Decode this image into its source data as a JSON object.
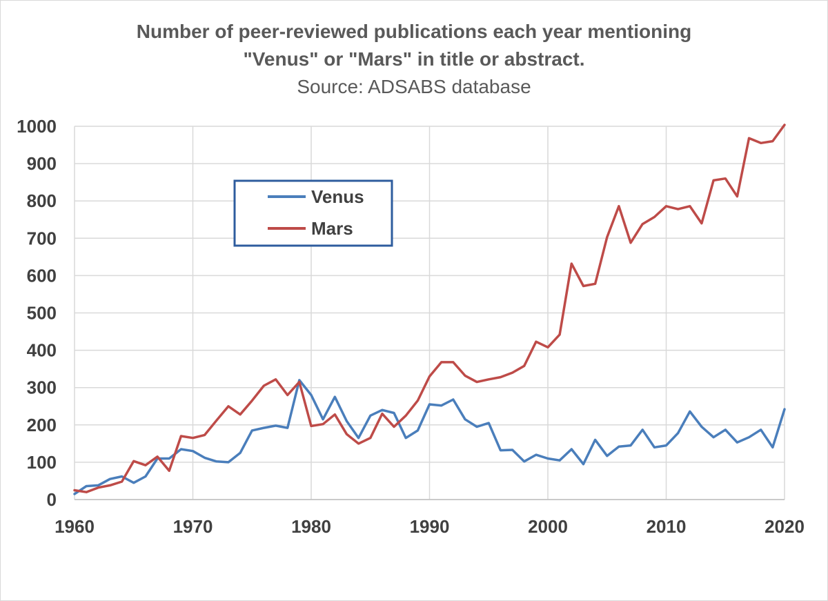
{
  "chart_data": {
    "type": "line",
    "title": "Number of peer-reviewed publications each year mentioning",
    "title_line2": "\"Venus\" or \"Mars\" in title or abstract.",
    "subtitle": "Source: ADSABS database",
    "xlabel": "",
    "ylabel": "",
    "xlim": [
      1960,
      2020
    ],
    "ylim": [
      0,
      1000
    ],
    "x_ticks": [
      1960,
      1970,
      1980,
      1990,
      2000,
      2010,
      2020
    ],
    "y_ticks": [
      0,
      100,
      200,
      300,
      400,
      500,
      600,
      700,
      800,
      900,
      1000
    ],
    "grid": true,
    "legend_position": "upper-left inside",
    "x": [
      1960,
      1961,
      1962,
      1963,
      1964,
      1965,
      1966,
      1967,
      1968,
      1969,
      1970,
      1971,
      1972,
      1973,
      1974,
      1975,
      1976,
      1977,
      1978,
      1979,
      1980,
      1981,
      1982,
      1983,
      1984,
      1985,
      1986,
      1987,
      1988,
      1989,
      1990,
      1991,
      1992,
      1993,
      1994,
      1995,
      1996,
      1997,
      1998,
      1999,
      2000,
      2001,
      2002,
      2003,
      2004,
      2005,
      2006,
      2007,
      2008,
      2009,
      2010,
      2011,
      2012,
      2013,
      2014,
      2015,
      2016,
      2017,
      2018,
      2019,
      2020
    ],
    "series": [
      {
        "name": "Venus",
        "color": "#4a7ebb",
        "values": [
          15,
          36,
          38,
          55,
          62,
          45,
          62,
          110,
          110,
          135,
          130,
          112,
          102,
          100,
          125,
          185,
          192,
          198,
          192,
          320,
          280,
          215,
          275,
          210,
          165,
          225,
          240,
          232,
          165,
          185,
          255,
          252,
          268,
          215,
          195,
          205,
          132,
          133,
          102,
          120,
          110,
          105,
          135,
          95,
          160,
          117,
          142,
          145,
          187,
          140,
          145,
          178,
          236,
          195,
          167,
          187,
          153,
          167,
          187,
          140,
          242
        ]
      },
      {
        "name": "Mars",
        "color": "#be4b48",
        "values": [
          25,
          20,
          32,
          38,
          48,
          103,
          92,
          115,
          77,
          170,
          165,
          173,
          212,
          250,
          228,
          265,
          305,
          322,
          280,
          315,
          197,
          202,
          228,
          175,
          150,
          165,
          230,
          195,
          225,
          265,
          330,
          368,
          368,
          332,
          315,
          322,
          328,
          340,
          358,
          423,
          408,
          442,
          632,
          572,
          578,
          703,
          786,
          688,
          738,
          757,
          786,
          778,
          786,
          740,
          855,
          860,
          812,
          968,
          955,
          960,
          1005
        ]
      }
    ]
  }
}
